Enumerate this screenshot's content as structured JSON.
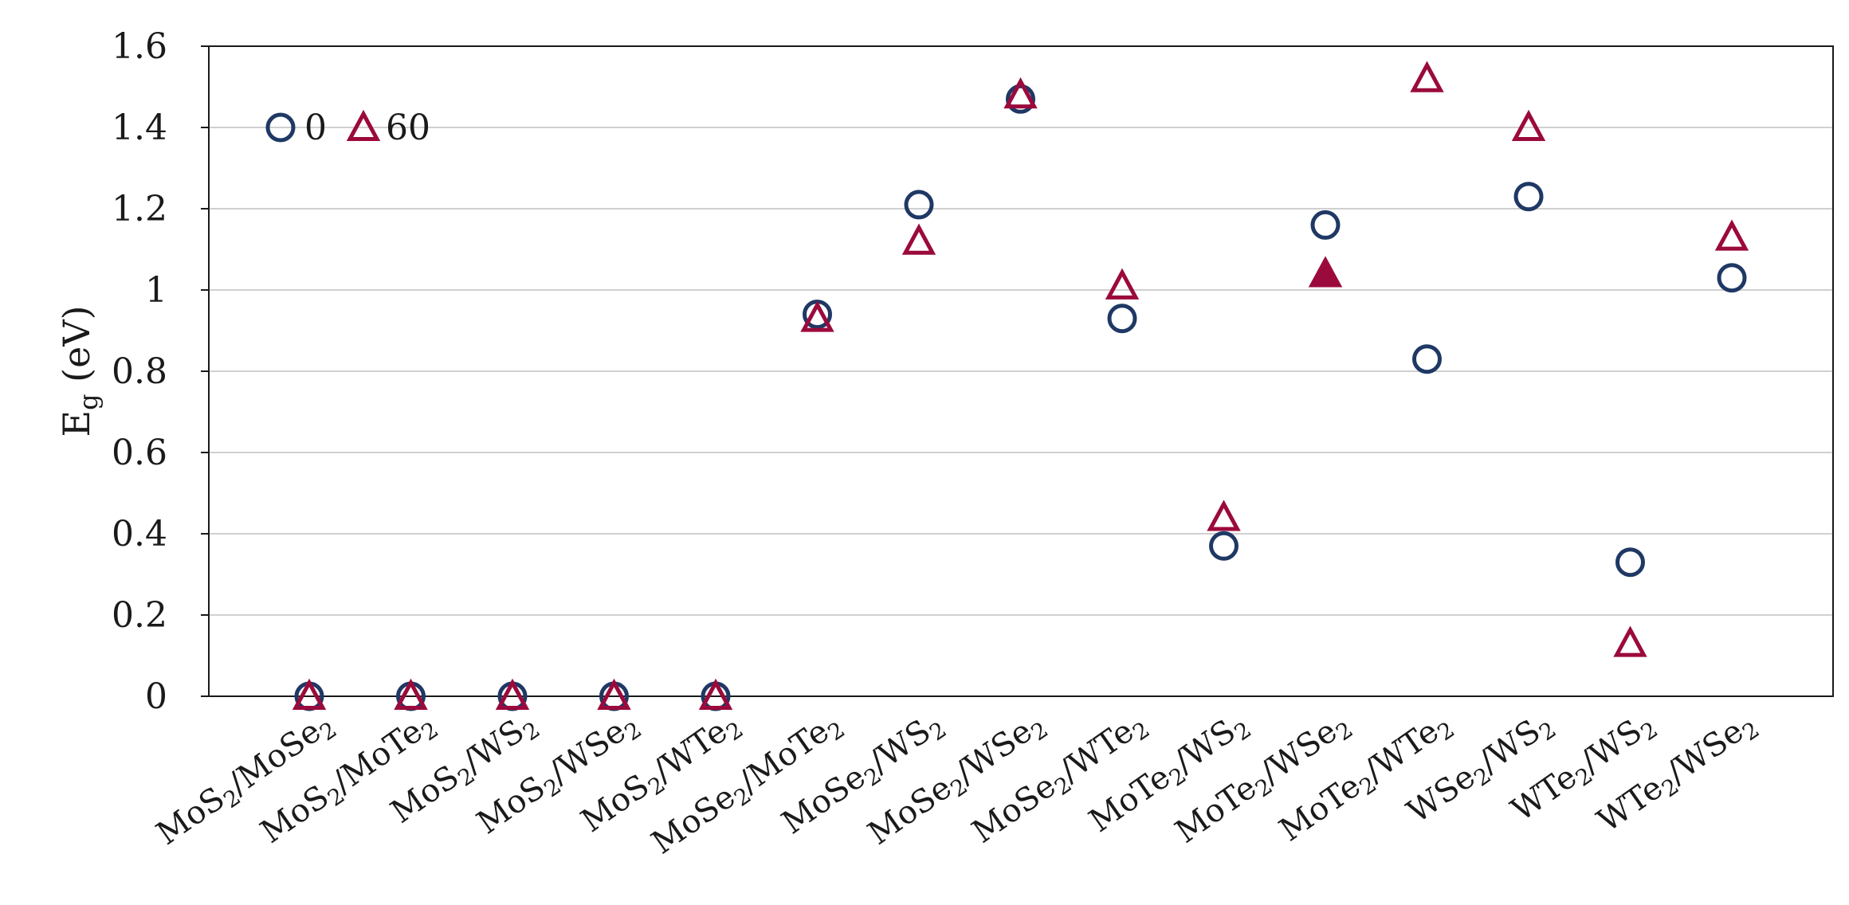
{
  "chart_data": {
    "type": "scatter",
    "ylabel": {
      "main": "E",
      "sub": "g",
      "rest": " (eV)"
    },
    "ylim": [
      0,
      1.6
    ],
    "yticks": [
      "0",
      "0.2",
      "0.4",
      "0.6",
      "0.8",
      "1",
      "1.2",
      "1.4",
      "1.6"
    ],
    "grid": true,
    "legend_position": "top-left",
    "categories": [
      [
        {
          "t": "MoS"
        },
        {
          "s": "2"
        },
        {
          "t": "/MoSe"
        },
        {
          "s": "2"
        }
      ],
      [
        {
          "t": "MoS"
        },
        {
          "s": "2"
        },
        {
          "t": "/MoTe"
        },
        {
          "s": "2"
        }
      ],
      [
        {
          "t": "MoS"
        },
        {
          "s": "2"
        },
        {
          "t": "/WS"
        },
        {
          "s": "2"
        }
      ],
      [
        {
          "t": "MoS"
        },
        {
          "s": "2"
        },
        {
          "t": "/WSe"
        },
        {
          "s": "2"
        }
      ],
      [
        {
          "t": "MoS"
        },
        {
          "s": "2"
        },
        {
          "t": "/WTe"
        },
        {
          "s": "2"
        }
      ],
      [
        {
          "t": "MoSe"
        },
        {
          "s": "2"
        },
        {
          "t": "/MoTe"
        },
        {
          "s": "2"
        }
      ],
      [
        {
          "t": "MoSe"
        },
        {
          "s": "2"
        },
        {
          "t": "/WS"
        },
        {
          "s": "2"
        }
      ],
      [
        {
          "t": "MoSe"
        },
        {
          "s": "2"
        },
        {
          "t": "/WSe"
        },
        {
          "s": "2"
        }
      ],
      [
        {
          "t": "MoSe"
        },
        {
          "s": "2"
        },
        {
          "t": "/WTe"
        },
        {
          "s": "2"
        }
      ],
      [
        {
          "t": "MoTe"
        },
        {
          "s": "2"
        },
        {
          "t": "/WS"
        },
        {
          "s": "2"
        }
      ],
      [
        {
          "t": "MoTe"
        },
        {
          "s": "2"
        },
        {
          "t": "/WSe"
        },
        {
          "s": "2"
        }
      ],
      [
        {
          "t": "MoTe"
        },
        {
          "s": "2"
        },
        {
          "t": "/WTe"
        },
        {
          "s": "2"
        }
      ],
      [
        {
          "t": "WSe"
        },
        {
          "s": "2"
        },
        {
          "t": "/WS"
        },
        {
          "s": "2"
        }
      ],
      [
        {
          "t": "WTe"
        },
        {
          "s": "2"
        },
        {
          "t": "/WS"
        },
        {
          "s": "2"
        }
      ],
      [
        {
          "t": "WTe"
        },
        {
          "s": "2"
        },
        {
          "t": "/WSe"
        },
        {
          "s": "2"
        }
      ]
    ],
    "series": [
      {
        "name": "0",
        "marker": "circle",
        "color": "#1f3864",
        "values": [
          0,
          0,
          0,
          0,
          0,
          0.94,
          1.21,
          1.47,
          0.93,
          0.37,
          1.16,
          0.83,
          1.23,
          0.33,
          1.03
        ]
      },
      {
        "name": "60",
        "marker": "triangle",
        "color": "#9b0a3c",
        "values": [
          0,
          0,
          0,
          0,
          0,
          0.93,
          1.12,
          1.48,
          1.01,
          0.44,
          1.04,
          1.52,
          1.4,
          0.13,
          1.13
        ],
        "filled": [
          false,
          false,
          false,
          false,
          false,
          false,
          false,
          false,
          false,
          false,
          true,
          false,
          false,
          false,
          false
        ]
      }
    ]
  }
}
